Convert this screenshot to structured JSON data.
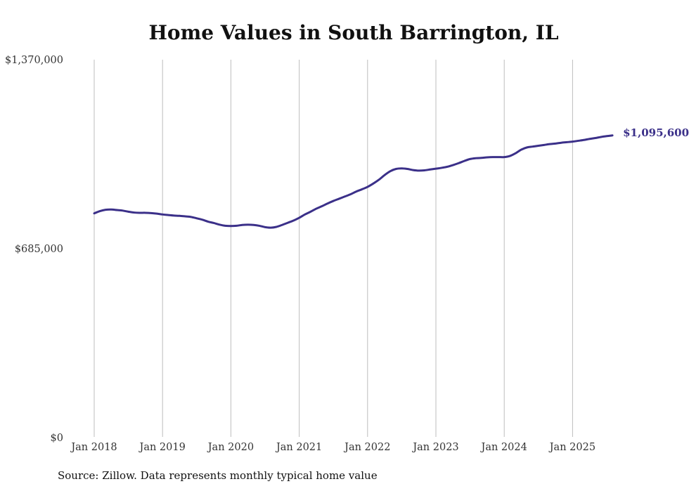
{
  "chart_data": {
    "type": "line",
    "title": "Home Values in South Barrington, IL",
    "xlabel": "",
    "ylabel": "",
    "ylim": [
      0,
      1370000
    ],
    "y_ticks": [
      {
        "value": 1370000,
        "label": "$1,370,000"
      },
      {
        "value": 685000,
        "label": "$685,000"
      },
      {
        "value": 0,
        "label": "$0"
      }
    ],
    "x_ticks": [
      {
        "date": "2018-01",
        "label": "Jan 2018"
      },
      {
        "date": "2019-01",
        "label": "Jan 2019"
      },
      {
        "date": "2020-01",
        "label": "Jan 2020"
      },
      {
        "date": "2021-01",
        "label": "Jan 2021"
      },
      {
        "date": "2022-01",
        "label": "Jan 2022"
      },
      {
        "date": "2023-01",
        "label": "Jan 2023"
      },
      {
        "date": "2024-01",
        "label": "Jan 2024"
      },
      {
        "date": "2025-01",
        "label": "Jan 2025"
      }
    ],
    "grid": "vertical",
    "line_color": "#3b3089",
    "series": [
      {
        "x": [
          "2018-01",
          "2018-02",
          "2018-03",
          "2018-04",
          "2018-05",
          "2018-06",
          "2018-07",
          "2018-08",
          "2018-09",
          "2018-10",
          "2018-11",
          "2018-12",
          "2019-01",
          "2019-02",
          "2019-03",
          "2019-04",
          "2019-05",
          "2019-06",
          "2019-07",
          "2019-08",
          "2019-09",
          "2019-10",
          "2019-11",
          "2019-12",
          "2020-01",
          "2020-02",
          "2020-03",
          "2020-04",
          "2020-05",
          "2020-06",
          "2020-07",
          "2020-08",
          "2020-09",
          "2020-10",
          "2020-11",
          "2020-12",
          "2021-01",
          "2021-02",
          "2021-03",
          "2021-04",
          "2021-05",
          "2021-06",
          "2021-07",
          "2021-08",
          "2021-09",
          "2021-10",
          "2021-11",
          "2021-12",
          "2022-01",
          "2022-02",
          "2022-03",
          "2022-04",
          "2022-05",
          "2022-06",
          "2022-07",
          "2022-08",
          "2022-09",
          "2022-10",
          "2022-11",
          "2022-12",
          "2023-01",
          "2023-02",
          "2023-03",
          "2023-04",
          "2023-05",
          "2023-06",
          "2023-07",
          "2023-08",
          "2023-09",
          "2023-10",
          "2023-11",
          "2023-12",
          "2024-01",
          "2024-02",
          "2024-03",
          "2024-04",
          "2024-05",
          "2024-06",
          "2024-07",
          "2024-08",
          "2024-09",
          "2024-10",
          "2024-11",
          "2024-12",
          "2025-01",
          "2025-02",
          "2025-03",
          "2025-04",
          "2025-05",
          "2025-06",
          "2025-07",
          "2025-08"
        ],
        "values": [
          813000,
          821000,
          826000,
          827000,
          825000,
          823000,
          819000,
          816000,
          815000,
          815000,
          814000,
          812000,
          809000,
          807000,
          805000,
          804000,
          802000,
          800000,
          795000,
          790000,
          783000,
          778000,
          772000,
          768000,
          767000,
          768000,
          771000,
          772000,
          771000,
          768000,
          763000,
          761000,
          764000,
          771000,
          779000,
          787000,
          797000,
          809000,
          819000,
          830000,
          839000,
          849000,
          858000,
          866000,
          874000,
          882000,
          892000,
          900000,
          909000,
          921000,
          935000,
          952000,
          966000,
          974000,
          976000,
          974000,
          970000,
          968000,
          969000,
          972000,
          975000,
          978000,
          982000,
          988000,
          995000,
          1003000,
          1010000,
          1013000,
          1014000,
          1016000,
          1017000,
          1017000,
          1017000,
          1021000,
          1031000,
          1044000,
          1052000,
          1055000,
          1058000,
          1061000,
          1064000,
          1066000,
          1069000,
          1071000,
          1073000,
          1076000,
          1079000,
          1083000,
          1086000,
          1090000,
          1093000,
          1095600
        ]
      }
    ],
    "end_label": "$1,095,600"
  },
  "footer": {
    "source": "Source: Zillow. Data represents monthly typical home value"
  }
}
